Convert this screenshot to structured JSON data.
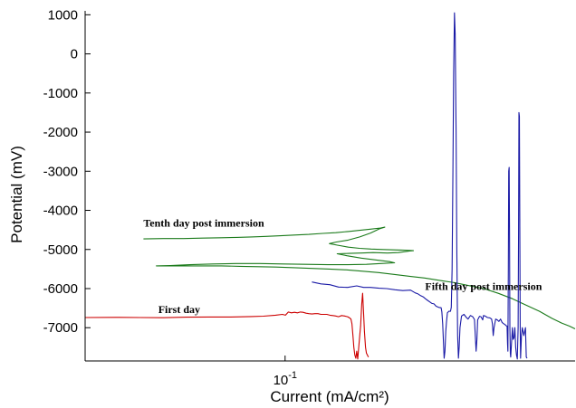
{
  "chart_data": {
    "type": "line",
    "title": "",
    "xlabel": "Current (mA/cm²)",
    "ylabel": "Potential (mV)",
    "x_scale": "log",
    "xlim": [
      0.036,
      0.44
    ],
    "ylim": [
      -7850,
      1100
    ],
    "grid": false,
    "legend": "none",
    "x_ticks": [
      {
        "value": 0.1,
        "base": "10",
        "exp": "-1"
      }
    ],
    "y_ticks": [
      {
        "value": 1000,
        "label": "1000"
      },
      {
        "value": 0,
        "label": "0"
      },
      {
        "value": -1000,
        "label": "-1000"
      },
      {
        "value": -2000,
        "label": "-2000"
      },
      {
        "value": -3000,
        "label": "-3000"
      },
      {
        "value": -4000,
        "label": "-4000"
      },
      {
        "value": -5000,
        "label": "-5000"
      },
      {
        "value": -6000,
        "label": "-6000"
      },
      {
        "value": -7000,
        "label": "-7000"
      }
    ],
    "annotations": [
      {
        "text": "Tenth day post immersion",
        "x": 0.0485,
        "y": -4420
      },
      {
        "text": "First day",
        "x": 0.0523,
        "y": -6620
      },
      {
        "text": "Fifth day post immersion",
        "x": 0.2045,
        "y": -6040
      }
    ],
    "series": [
      {
        "color": "#cc0000",
        "points": [
          [
            0.036,
            -6740
          ],
          [
            0.0428,
            -6735
          ],
          [
            0.0476,
            -6740
          ],
          [
            0.0537,
            -6745
          ],
          [
            0.0604,
            -6730
          ],
          [
            0.068,
            -6725
          ],
          [
            0.0757,
            -6725
          ],
          [
            0.0841,
            -6715
          ],
          [
            0.0895,
            -6705
          ],
          [
            0.0952,
            -6680
          ],
          [
            0.0986,
            -6660
          ],
          [
            0.1002,
            -6680
          ],
          [
            0.1017,
            -6600
          ],
          [
            0.1033,
            -6620
          ],
          [
            0.1049,
            -6605
          ],
          [
            0.1065,
            -6620
          ],
          [
            0.1081,
            -6600
          ],
          [
            0.1096,
            -6605
          ],
          [
            0.1113,
            -6630
          ],
          [
            0.1129,
            -6640
          ],
          [
            0.1147,
            -6650
          ],
          [
            0.1165,
            -6640
          ],
          [
            0.1183,
            -6640
          ],
          [
            0.1201,
            -6660
          ],
          [
            0.1219,
            -6660
          ],
          [
            0.1238,
            -6660
          ],
          [
            0.1257,
            -6680
          ],
          [
            0.1276,
            -6690
          ],
          [
            0.1295,
            -6700
          ],
          [
            0.1314,
            -6720
          ],
          [
            0.1335,
            -6690
          ],
          [
            0.1355,
            -6700
          ],
          [
            0.1376,
            -6720
          ],
          [
            0.139,
            -6750
          ],
          [
            0.14,
            -6780
          ],
          [
            0.1407,
            -6900
          ],
          [
            0.1414,
            -7200
          ],
          [
            0.1421,
            -7500
          ],
          [
            0.1428,
            -7700
          ],
          [
            0.1435,
            -7780
          ],
          [
            0.1442,
            -7600
          ],
          [
            0.1449,
            -7800
          ],
          [
            0.1457,
            -7500
          ],
          [
            0.1464,
            -7200
          ],
          [
            0.1471,
            -6950
          ],
          [
            0.1479,
            -6400
          ],
          [
            0.1486,
            -6120
          ],
          [
            0.1493,
            -6600
          ],
          [
            0.15,
            -7100
          ],
          [
            0.1508,
            -7500
          ],
          [
            0.1515,
            -7650
          ],
          [
            0.1523,
            -7700
          ],
          [
            0.1531,
            -7750
          ]
        ]
      },
      {
        "color": "#1a7a1a",
        "points": [
          [
            0.0485,
            -4730
          ],
          [
            0.0537,
            -4720
          ],
          [
            0.0595,
            -4720
          ],
          [
            0.0656,
            -4710
          ],
          [
            0.0722,
            -4700
          ],
          [
            0.0781,
            -4690
          ],
          [
            0.0841,
            -4680
          ],
          [
            0.0907,
            -4665
          ],
          [
            0.0978,
            -4650
          ],
          [
            0.1049,
            -4630
          ],
          [
            0.1129,
            -4615
          ],
          [
            0.1212,
            -4590
          ],
          [
            0.1295,
            -4570
          ],
          [
            0.138,
            -4540
          ],
          [
            0.1464,
            -4510
          ],
          [
            0.1546,
            -4480
          ],
          [
            0.1629,
            -4450
          ],
          [
            0.1664,
            -4430
          ],
          [
            0.1622,
            -4470
          ],
          [
            0.1547,
            -4580
          ],
          [
            0.1464,
            -4680
          ],
          [
            0.138,
            -4760
          ],
          [
            0.13,
            -4810
          ],
          [
            0.1254,
            -4850
          ],
          [
            0.1306,
            -4890
          ],
          [
            0.1382,
            -4940
          ],
          [
            0.1463,
            -4970
          ],
          [
            0.1552,
            -4990
          ],
          [
            0.1647,
            -5000
          ],
          [
            0.1742,
            -5010
          ],
          [
            0.1839,
            -5020
          ],
          [
            0.1926,
            -5030
          ],
          [
            0.1889,
            -5040
          ],
          [
            0.1783,
            -5080
          ],
          [
            0.1687,
            -5090
          ],
          [
            0.1567,
            -5080
          ],
          [
            0.1476,
            -5090
          ],
          [
            0.1388,
            -5100
          ],
          [
            0.1305,
            -5110
          ],
          [
            0.1372,
            -5160
          ],
          [
            0.1475,
            -5220
          ],
          [
            0.1595,
            -5270
          ],
          [
            0.1705,
            -5310
          ],
          [
            0.175,
            -5340
          ],
          [
            0.163,
            -5360
          ],
          [
            0.1515,
            -5380
          ],
          [
            0.138,
            -5390
          ],
          [
            0.1243,
            -5390
          ],
          [
            0.1113,
            -5380
          ],
          [
            0.0992,
            -5370
          ],
          [
            0.0879,
            -5360
          ],
          [
            0.0777,
            -5360
          ],
          [
            0.0691,
            -5370
          ],
          [
            0.0615,
            -5390
          ],
          [
            0.0556,
            -5410
          ],
          [
            0.0518,
            -5420
          ],
          [
            0.0589,
            -5420
          ],
          [
            0.0656,
            -5420
          ],
          [
            0.0722,
            -5420
          ],
          [
            0.0794,
            -5430
          ],
          [
            0.0874,
            -5440
          ],
          [
            0.0954,
            -5450
          ],
          [
            0.1049,
            -5465
          ],
          [
            0.1147,
            -5485
          ],
          [
            0.1254,
            -5500
          ],
          [
            0.1369,
            -5520
          ],
          [
            0.1488,
            -5555
          ],
          [
            0.1613,
            -5590
          ],
          [
            0.1751,
            -5640
          ],
          [
            0.1898,
            -5690
          ],
          [
            0.2039,
            -5730
          ],
          [
            0.2201,
            -5790
          ],
          [
            0.2381,
            -5850
          ],
          [
            0.2563,
            -5925
          ],
          [
            0.2758,
            -6000
          ],
          [
            0.297,
            -6120
          ],
          [
            0.3195,
            -6260
          ],
          [
            0.3424,
            -6420
          ],
          [
            0.3669,
            -6580
          ],
          [
            0.3909,
            -6760
          ],
          [
            0.4109,
            -6880
          ],
          [
            0.4276,
            -6960
          ],
          [
            0.4399,
            -7030
          ]
        ]
      },
      {
        "color": "#1a1aa6",
        "points": [
          [
            0.1147,
            -5830
          ],
          [
            0.1201,
            -5880
          ],
          [
            0.1257,
            -5900
          ],
          [
            0.1314,
            -5960
          ],
          [
            0.1376,
            -5970
          ],
          [
            0.1442,
            -5930
          ],
          [
            0.1493,
            -5970
          ],
          [
            0.1546,
            -5970
          ],
          [
            0.1616,
            -5990
          ],
          [
            0.1681,
            -6000
          ],
          [
            0.1754,
            -6030
          ],
          [
            0.1825,
            -6050
          ],
          [
            0.1898,
            -6040
          ],
          [
            0.1945,
            -6110
          ],
          [
            0.1967,
            -6130
          ],
          [
            0.1998,
            -6180
          ],
          [
            0.2024,
            -6210
          ],
          [
            0.2048,
            -6260
          ],
          [
            0.2071,
            -6300
          ],
          [
            0.2094,
            -6340
          ],
          [
            0.2117,
            -6380
          ],
          [
            0.214,
            -6390
          ],
          [
            0.2163,
            -6450
          ],
          [
            0.2193,
            -6480
          ],
          [
            0.2219,
            -6490
          ],
          [
            0.2228,
            -6600
          ],
          [
            0.2237,
            -6900
          ],
          [
            0.2246,
            -7400
          ],
          [
            0.2254,
            -7780
          ],
          [
            0.2263,
            -7600
          ],
          [
            0.2272,
            -7100
          ],
          [
            0.2281,
            -6850
          ],
          [
            0.2291,
            -6620
          ],
          [
            0.2309,
            -6580
          ],
          [
            0.2328,
            -6580
          ],
          [
            0.2338,
            -6480
          ],
          [
            0.2347,
            -5500
          ],
          [
            0.2357,
            -3000
          ],
          [
            0.2366,
            -500
          ],
          [
            0.2376,
            1050
          ],
          [
            0.2385,
            500
          ],
          [
            0.2395,
            -2000
          ],
          [
            0.2404,
            -5000
          ],
          [
            0.2414,
            -7200
          ],
          [
            0.2424,
            -7780
          ],
          [
            0.2434,
            -7500
          ],
          [
            0.2444,
            -7000
          ],
          [
            0.2463,
            -6700
          ],
          [
            0.2494,
            -6660
          ],
          [
            0.2525,
            -6740
          ],
          [
            0.2546,
            -6780
          ],
          [
            0.2577,
            -6690
          ],
          [
            0.2609,
            -6720
          ],
          [
            0.2631,
            -6790
          ],
          [
            0.2642,
            -7200
          ],
          [
            0.2653,
            -7600
          ],
          [
            0.2664,
            -7300
          ],
          [
            0.2675,
            -6800
          ],
          [
            0.2699,
            -6710
          ],
          [
            0.2721,
            -6720
          ],
          [
            0.2744,
            -6800
          ],
          [
            0.2755,
            -6690
          ],
          [
            0.2778,
            -6700
          ],
          [
            0.2813,
            -6740
          ],
          [
            0.2848,
            -6750
          ],
          [
            0.2872,
            -6780
          ],
          [
            0.2884,
            -6900
          ],
          [
            0.2896,
            -7200
          ],
          [
            0.2908,
            -7000
          ],
          [
            0.2933,
            -6780
          ],
          [
            0.2957,
            -6800
          ],
          [
            0.2982,
            -6840
          ],
          [
            0.3007,
            -6780
          ],
          [
            0.3032,
            -6870
          ],
          [
            0.3057,
            -6900
          ],
          [
            0.3083,
            -6930
          ],
          [
            0.3096,
            -6950
          ],
          [
            0.3109,
            -6960
          ],
          [
            0.3115,
            -7400
          ],
          [
            0.3122,
            -7600
          ],
          [
            0.3128,
            -5500
          ],
          [
            0.3135,
            -3000
          ],
          [
            0.3141,
            -2900
          ],
          [
            0.3148,
            -4500
          ],
          [
            0.3154,
            -7000
          ],
          [
            0.3161,
            -7650
          ],
          [
            0.3167,
            -7750
          ],
          [
            0.3194,
            -7000
          ],
          [
            0.3207,
            -7300
          ],
          [
            0.3221,
            -7250
          ],
          [
            0.3234,
            -7000
          ],
          [
            0.3248,
            -7500
          ],
          [
            0.3262,
            -7700
          ],
          [
            0.3275,
            -7800
          ],
          [
            0.3289,
            -7000
          ],
          [
            0.3296,
            -4500
          ],
          [
            0.3303,
            -1500
          ],
          [
            0.331,
            -1600
          ],
          [
            0.3317,
            -4000
          ],
          [
            0.3324,
            -7000
          ],
          [
            0.3331,
            -7780
          ],
          [
            0.3345,
            -7200
          ],
          [
            0.3359,
            -7000
          ],
          [
            0.3386,
            -7200
          ],
          [
            0.3415,
            -7000
          ],
          [
            0.3429,
            -7750
          ],
          [
            0.3443,
            -7780
          ]
        ]
      }
    ]
  }
}
